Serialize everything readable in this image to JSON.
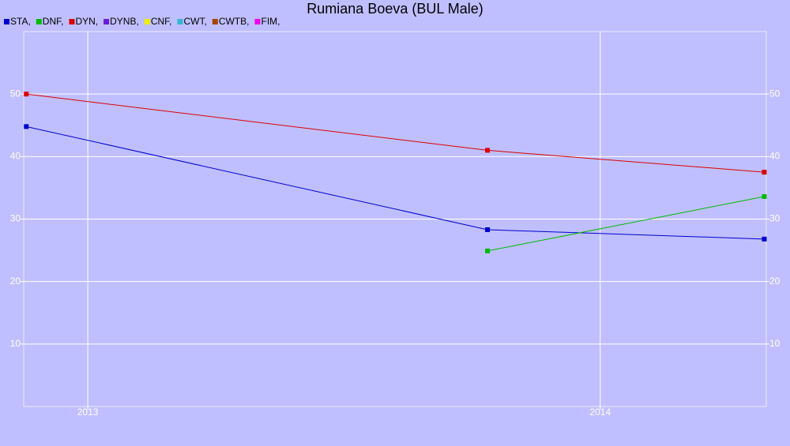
{
  "chart_data": {
    "type": "line",
    "title": "Rumiana Boeva (BUL Male)",
    "x": [
      2012.88,
      2013.78,
      2014.32
    ],
    "xlim": [
      2012.875,
      2014.324
    ],
    "xticks": [
      2013,
      2014
    ],
    "ylim": [
      0,
      60
    ],
    "yticks": [
      10,
      20,
      30,
      40,
      50
    ],
    "grid": true,
    "series": [
      {
        "name": "STA,",
        "color": "#0000cc",
        "values": [
          44.8,
          28.3,
          26.8
        ]
      },
      {
        "name": "DNF,",
        "color": "#00bb00",
        "values": [
          null,
          24.9,
          33.6
        ]
      },
      {
        "name": "DYN,",
        "color": "#dd0000",
        "values": [
          50,
          41,
          37.5
        ]
      },
      {
        "name": "DYNB,",
        "color": "#6a1ad8",
        "values": [
          null,
          null,
          null
        ]
      },
      {
        "name": "CNF,",
        "color": "#eeee00",
        "values": [
          null,
          null,
          null
        ]
      },
      {
        "name": "CWT,",
        "color": "#33b8d0",
        "values": [
          null,
          null,
          null
        ]
      },
      {
        "name": "CWTB,",
        "color": "#a84400",
        "values": [
          null,
          null,
          null
        ]
      },
      {
        "name": "FIM,",
        "color": "#ee00ee",
        "values": [
          null,
          null,
          null
        ]
      }
    ]
  }
}
